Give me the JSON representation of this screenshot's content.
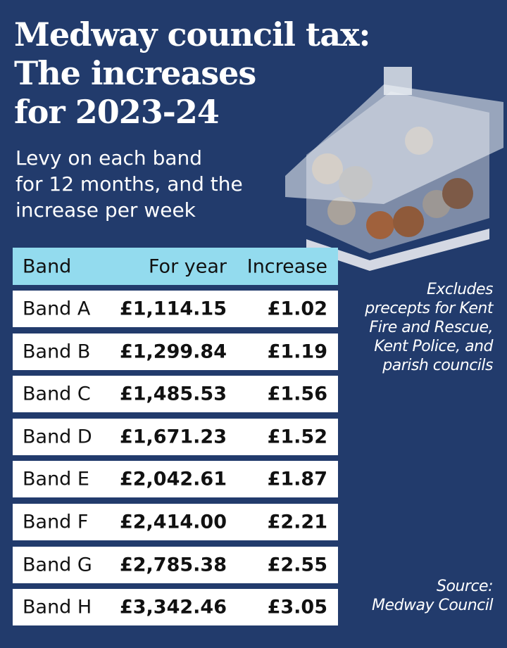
{
  "header": {
    "title_lines": [
      "Medway council tax:",
      "The increases",
      "for 2023-24"
    ],
    "subtitle_lines": [
      "Levy on each band",
      "for 12 months, and the",
      "increase per week"
    ]
  },
  "table": {
    "columns": [
      "Band",
      "For year",
      "Increase"
    ],
    "rows": [
      [
        "Band A",
        "£1,114.15",
        "£1.02"
      ],
      [
        "Band B",
        "£1,299.84",
        "£1.19"
      ],
      [
        "Band C",
        "£1,485.53",
        "£1.56"
      ],
      [
        "Band D",
        "£1,671.23",
        "£1.52"
      ],
      [
        "Band E",
        "£2,042.61",
        "£1.87"
      ],
      [
        "Band F",
        "£2,414.00",
        "£2.21"
      ],
      [
        "Band G",
        "£2,785.38",
        "£2.55"
      ],
      [
        "Band H",
        "£3,342.46",
        "£3.05"
      ]
    ]
  },
  "note_lines": [
    "Excludes",
    "precepts for Kent",
    "Fire and Rescue,",
    "Kent Police, and",
    "parish councils"
  ],
  "source_lines": [
    "Source:",
    "Medway Council"
  ]
}
